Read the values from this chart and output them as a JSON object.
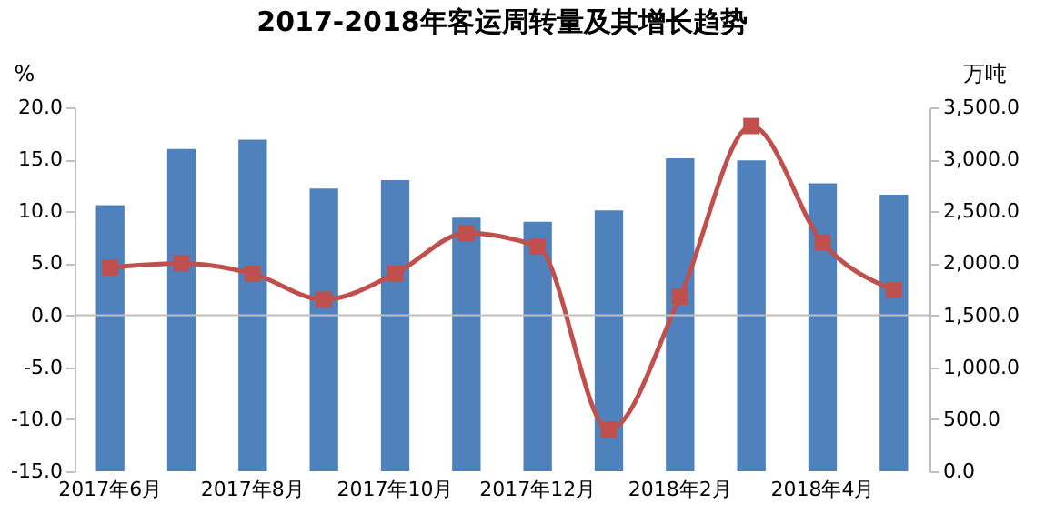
{
  "chart_data": {
    "type": "bar",
    "title": "2017-2018年客运周转量及其增长趋势",
    "ylabel": "%",
    "y2label": "万吨",
    "categories": [
      "2017年6月",
      null,
      "2017年8月",
      null,
      "2017年10月",
      null,
      "2017年12月",
      null,
      "2018年2月",
      null,
      "2018年4月",
      null
    ],
    "series": [
      {
        "axis": "y2",
        "color": "#4f81bd",
        "values": [
          2560,
          3100,
          3190,
          2720,
          2800,
          2440,
          2400,
          2510,
          3010,
          2990,
          2770,
          2660
        ]
      },
      {
        "type": "line",
        "axis": "y",
        "color": "#c0504d",
        "marker": "square",
        "values": [
          4.6,
          5.0,
          4.0,
          1.5,
          4.0,
          7.9,
          6.6,
          -11.0,
          1.8,
          18.2,
          7.0,
          2.4
        ]
      }
    ],
    "ylim": [
      -15,
      20
    ],
    "yticks": [
      {
        "value": -15,
        "label": "-15.0"
      },
      {
        "value": -10,
        "label": "-10.0"
      },
      {
        "value": -5,
        "label": "-5.0"
      },
      {
        "value": 0,
        "label": "0.0"
      },
      {
        "value": 5,
        "label": "5.0"
      },
      {
        "value": 10,
        "label": "10.0"
      },
      {
        "value": 15,
        "label": "15.0"
      },
      {
        "value": 20,
        "label": "20.0"
      }
    ],
    "y2lim": [
      0,
      3500
    ],
    "y2ticks": [
      {
        "value": 0,
        "label": "0.0"
      },
      {
        "value": 500,
        "label": "500.0"
      },
      {
        "value": 1000,
        "label": "1,000.0"
      },
      {
        "value": 1500,
        "label": "1,500.0"
      },
      {
        "value": 2000,
        "label": "2,000.0"
      },
      {
        "value": 2500,
        "label": "2,500.0"
      },
      {
        "value": 3000,
        "label": "3,000.0"
      },
      {
        "value": 3500,
        "label": "3,500.0"
      }
    ],
    "ref_lines": [
      {
        "axis": "y",
        "value": 0,
        "color": "#bfbfbf"
      }
    ],
    "grid": false
  }
}
